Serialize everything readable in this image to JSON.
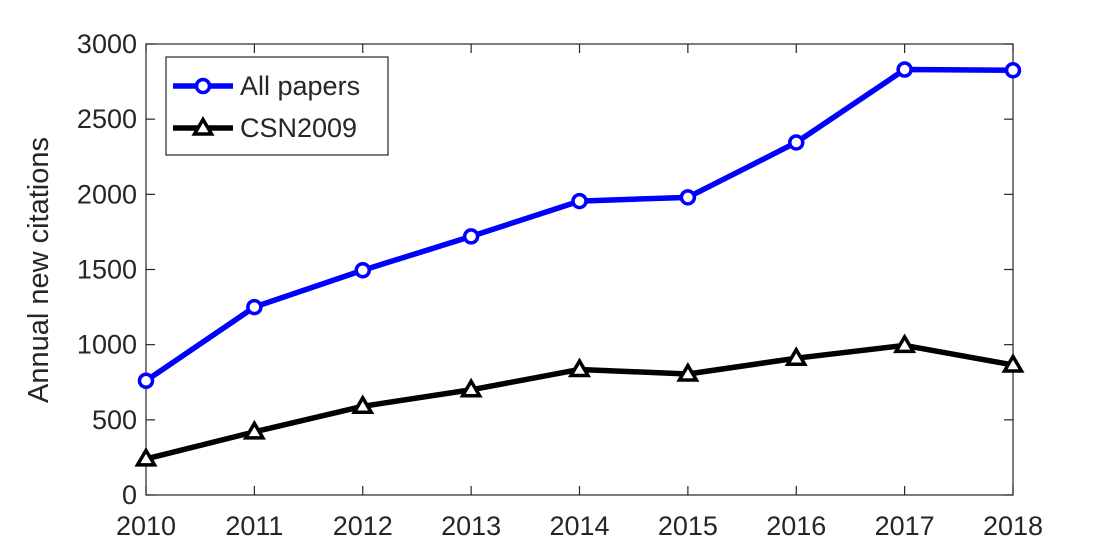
{
  "chart_data": {
    "type": "line",
    "title": "",
    "xlabel": "",
    "ylabel": "Annual new citations",
    "x": [
      2010,
      2011,
      2012,
      2013,
      2014,
      2015,
      2016,
      2017,
      2018
    ],
    "xlim": [
      2010,
      2018
    ],
    "ylim": [
      0,
      3000
    ],
    "yticks": [
      0,
      500,
      1000,
      1500,
      2000,
      2500,
      3000
    ],
    "grid": false,
    "legend_position": "top-left",
    "series": [
      {
        "name": "All papers",
        "color": "#0000ff",
        "marker": "circle",
        "values": [
          760,
          1250,
          1495,
          1720,
          1955,
          1980,
          2345,
          2830,
          2825
        ]
      },
      {
        "name": "CSN2009",
        "color": "#000000",
        "marker": "triangle",
        "values": [
          240,
          420,
          590,
          700,
          835,
          805,
          910,
          995,
          865
        ]
      }
    ]
  }
}
